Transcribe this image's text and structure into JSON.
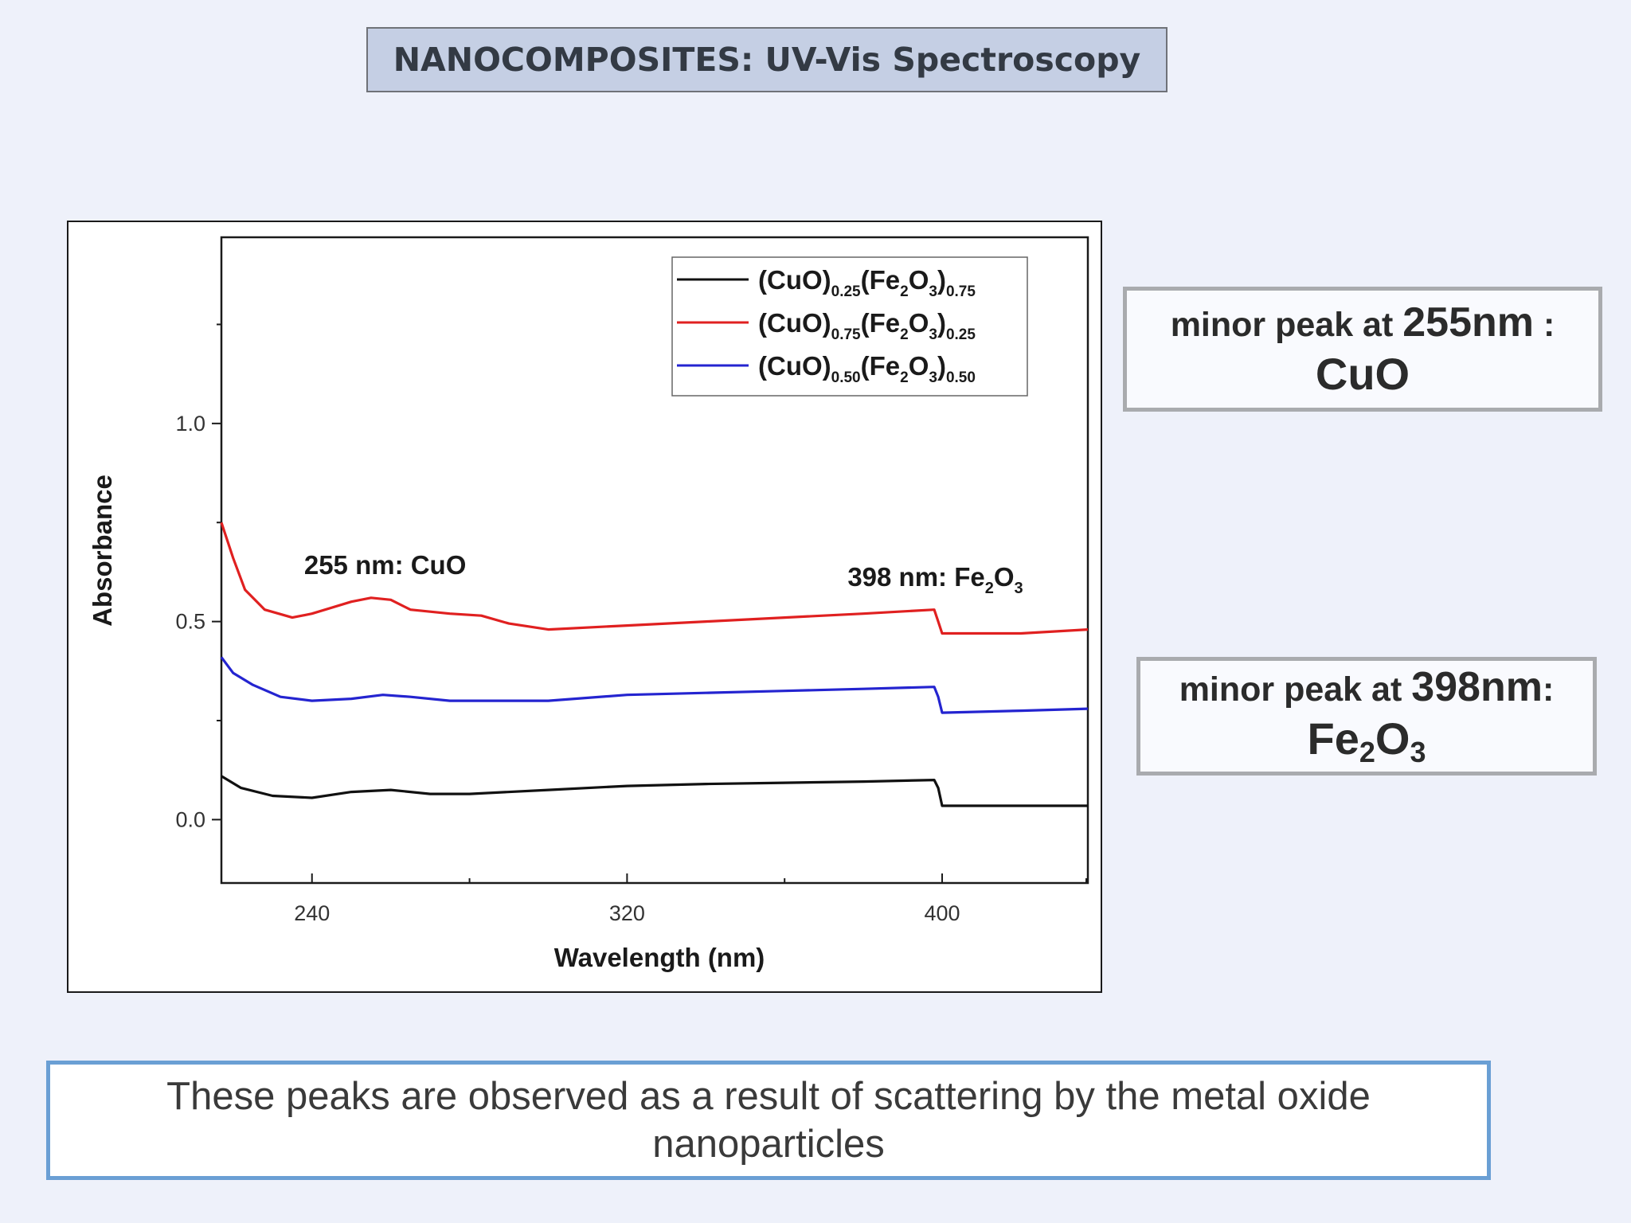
{
  "slide": {
    "title": "NANOCOMPOSITES: UV-Vis Spectroscopy",
    "footer": "These peaks are observed as a result of scattering by the metal oxide nanoparticles"
  },
  "notes": [
    {
      "prefix": "minor peak at ",
      "peak": "255nm",
      "suffix": " :",
      "compound": "CuO"
    },
    {
      "prefix": "minor peak at ",
      "peak": "398nm",
      "suffix": ":",
      "compound_main": "Fe",
      "compound_sub1": "2",
      "compound_mid": "O",
      "compound_sub2": "3"
    }
  ],
  "chart_data": {
    "type": "line",
    "xlabel": "Wavelength (nm)",
    "ylabel": "Absorbance",
    "xlim": [
      217,
      437
    ],
    "ylim": [
      -0.16,
      1.47
    ],
    "xticks": [
      240,
      320,
      400
    ],
    "xtick_labels": [
      "240",
      "320",
      "400"
    ],
    "yticks": [
      0.0,
      0.5,
      1.0
    ],
    "ytick_labels": [
      "0.0",
      "0.5",
      "1.0"
    ],
    "legend_position": "top-right",
    "grid": false,
    "series": [
      {
        "legend": {
          "base": "(CuO)",
          "s1": "0.25",
          "mid": "(Fe",
          "s2": "2",
          "mid2": "O",
          "s3": "3",
          "end": ")",
          "s4": "0.75"
        },
        "color": "#111111",
        "x": [
          217,
          222,
          230,
          240,
          250,
          260,
          270,
          280,
          300,
          320,
          340,
          360,
          380,
          398,
          399,
          400,
          420,
          437
        ],
        "y": [
          0.11,
          0.08,
          0.06,
          0.055,
          0.07,
          0.075,
          0.065,
          0.065,
          0.075,
          0.085,
          0.09,
          0.093,
          0.096,
          0.1,
          0.08,
          0.035,
          0.035,
          0.035
        ]
      },
      {
        "legend": {
          "base": "(CuO)",
          "s1": "0.75",
          "mid": "(Fe",
          "s2": "2",
          "mid2": "O",
          "s3": "3",
          "end": ")",
          "s4": "0.25"
        },
        "color": "#e02020",
        "x": [
          217,
          220,
          223,
          228,
          235,
          240,
          250,
          255,
          260,
          265,
          275,
          283,
          290,
          300,
          320,
          340,
          360,
          380,
          398,
          399,
          400,
          420,
          437
        ],
        "y": [
          0.75,
          0.66,
          0.58,
          0.53,
          0.51,
          0.52,
          0.55,
          0.56,
          0.555,
          0.53,
          0.52,
          0.515,
          0.495,
          0.48,
          0.49,
          0.5,
          0.51,
          0.52,
          0.53,
          0.5,
          0.47,
          0.47,
          0.48
        ]
      },
      {
        "legend": {
          "base": "(CuO)",
          "s1": "0.50",
          "mid": "(Fe",
          "s2": "2",
          "mid2": "O",
          "s3": "3",
          "end": ")",
          "s4": "0.50"
        },
        "color": "#2424d0",
        "x": [
          217,
          220,
          225,
          232,
          240,
          250,
          258,
          265,
          275,
          300,
          320,
          340,
          360,
          380,
          398,
          399,
          400,
          420,
          437
        ],
        "y": [
          0.41,
          0.37,
          0.34,
          0.31,
          0.3,
          0.305,
          0.315,
          0.31,
          0.3,
          0.3,
          0.315,
          0.32,
          0.325,
          0.33,
          0.335,
          0.31,
          0.27,
          0.275,
          0.28
        ]
      }
    ],
    "annotations": [
      {
        "text": "255 nm: CuO",
        "x": 238,
        "y": 0.62
      },
      {
        "main": "398 nm: Fe",
        "s1": "2",
        "mid": "O",
        "s2": "3",
        "x": 376,
        "y": 0.59
      }
    ]
  }
}
